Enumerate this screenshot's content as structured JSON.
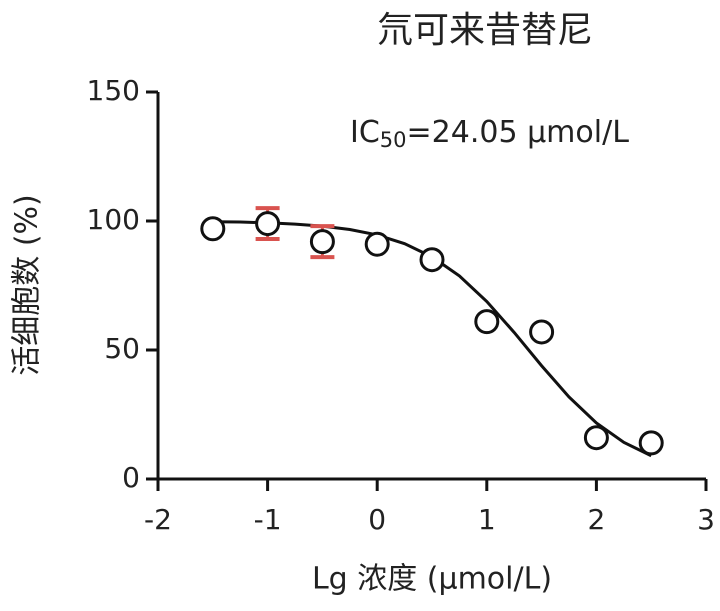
{
  "chart_data": {
    "type": "scatter",
    "title": "氘可来昔替尼",
    "annotation": {
      "main": "IC",
      "sub": "50",
      "rest": "=24.05 μmol/L"
    },
    "x_label": "Lg 浓度 (μmol/L)",
    "y_label": "活细胞数 (%)",
    "xlim": [
      -2,
      3
    ],
    "xticks": [
      -2,
      -1,
      0,
      1,
      2,
      3
    ],
    "ylim": [
      0,
      150
    ],
    "yticks": [
      0,
      50,
      100,
      150
    ],
    "series": [
      {
        "type": "scatter",
        "color": "#111111",
        "error_color": "#d9534f",
        "x": [
          -1.5,
          -1,
          -0.5,
          0,
          0.5,
          1,
          1.5,
          2,
          2.5
        ],
        "values": [
          97,
          99,
          92,
          91,
          85,
          61,
          57,
          16,
          14
        ],
        "errors": [
          null,
          6,
          6,
          null,
          null,
          null,
          null,
          null,
          null
        ]
      },
      {
        "type": "line",
        "color": "#111111",
        "x": [
          -1.5,
          -1.25,
          -1,
          -0.75,
          -0.5,
          -0.25,
          0,
          0.25,
          0.5,
          0.75,
          1,
          1.25,
          1.5,
          1.75,
          2,
          2.25,
          2.5
        ],
        "values": [
          99.7,
          99.6,
          99.3,
          98.8,
          98.0,
          96.7,
          94.6,
          91.2,
          86.1,
          78.7,
          68.8,
          56.8,
          43.9,
          31.8,
          21.7,
          14.2,
          9.0
        ]
      }
    ]
  }
}
